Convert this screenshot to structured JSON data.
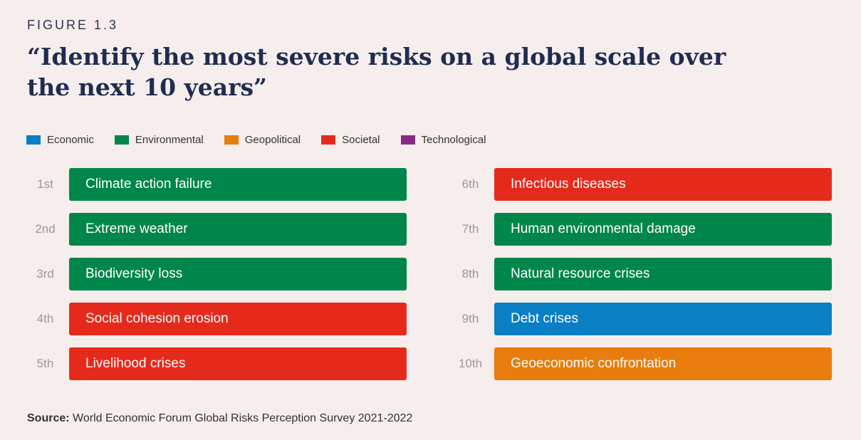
{
  "figure_label": "FIGURE 1.3",
  "title": "“Identify the most severe risks on a global scale over the next 10 years”",
  "source": {
    "label": "Source:",
    "text": "World Economic Forum Global Risks Perception Survey 2021-2022"
  },
  "colors": {
    "Economic": "#0a7fc4",
    "Environmental": "#00864b",
    "Geopolitical": "#e87c0c",
    "Societal": "#e52a1c",
    "Technological": "#8b2a84"
  },
  "chart_data": {
    "type": "table",
    "legend": [
      "Economic",
      "Environmental",
      "Geopolitical",
      "Societal",
      "Technological"
    ],
    "legend_placement": "top-left",
    "rows": [
      {
        "rank": "1st",
        "label": "Climate action failure",
        "category": "Environmental"
      },
      {
        "rank": "2nd",
        "label": "Extreme weather",
        "category": "Environmental"
      },
      {
        "rank": "3rd",
        "label": "Biodiversity loss",
        "category": "Environmental"
      },
      {
        "rank": "4th",
        "label": "Social cohesion erosion",
        "category": "Societal"
      },
      {
        "rank": "5th",
        "label": "Livelihood crises",
        "category": "Societal"
      },
      {
        "rank": "6th",
        "label": "Infectious diseases",
        "category": "Societal"
      },
      {
        "rank": "7th",
        "label": "Human environmental damage",
        "category": "Environmental"
      },
      {
        "rank": "8th",
        "label": "Natural resource crises",
        "category": "Environmental"
      },
      {
        "rank": "9th",
        "label": "Debt crises",
        "category": "Economic"
      },
      {
        "rank": "10th",
        "label": "Geoeconomic confrontation",
        "category": "Geopolitical"
      }
    ]
  }
}
